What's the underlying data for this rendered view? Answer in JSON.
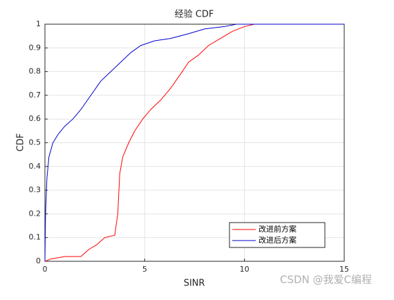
{
  "chart_data": {
    "type": "line",
    "title": "经验 CDF",
    "xlabel": "SINR",
    "ylabel": "CDF",
    "xlim": [
      0,
      15
    ],
    "ylim": [
      0,
      1
    ],
    "xticks": [
      0,
      5,
      10,
      15
    ],
    "yticks": [
      0,
      0.1,
      0.2,
      0.3,
      0.4,
      0.5,
      0.6,
      0.7,
      0.8,
      0.9,
      1
    ],
    "grid": true,
    "legend": "lower right",
    "series": [
      {
        "name": "改进前方案",
        "color": "#ff0000",
        "x": [
          0,
          0.3,
          1.0,
          1.8,
          2.2,
          2.6,
          3.0,
          3.5,
          3.65,
          3.75,
          3.9,
          4.2,
          4.5,
          4.9,
          5.3,
          5.8,
          6.3,
          6.8,
          7.2,
          7.7,
          8.2,
          8.8,
          9.4,
          10.0,
          10.5,
          15
        ],
        "values": [
          0,
          0.01,
          0.02,
          0.02,
          0.05,
          0.07,
          0.1,
          0.11,
          0.2,
          0.37,
          0.44,
          0.5,
          0.55,
          0.6,
          0.64,
          0.68,
          0.73,
          0.79,
          0.84,
          0.87,
          0.91,
          0.94,
          0.97,
          0.99,
          1,
          1
        ]
      },
      {
        "name": "改进后方案",
        "color": "#0000cc",
        "x": [
          0,
          0.03,
          0.1,
          0.2,
          0.4,
          0.7,
          1.0,
          1.4,
          1.8,
          2.3,
          2.8,
          3.3,
          3.8,
          4.3,
          4.8,
          5.5,
          6.3,
          7.2,
          8.0,
          9.0,
          9.6,
          15
        ],
        "values": [
          0,
          0.2,
          0.35,
          0.44,
          0.5,
          0.54,
          0.57,
          0.6,
          0.64,
          0.7,
          0.76,
          0.8,
          0.84,
          0.88,
          0.91,
          0.93,
          0.94,
          0.96,
          0.98,
          0.99,
          1,
          1
        ]
      }
    ]
  },
  "watermark": "CSDN @我爱C编程"
}
